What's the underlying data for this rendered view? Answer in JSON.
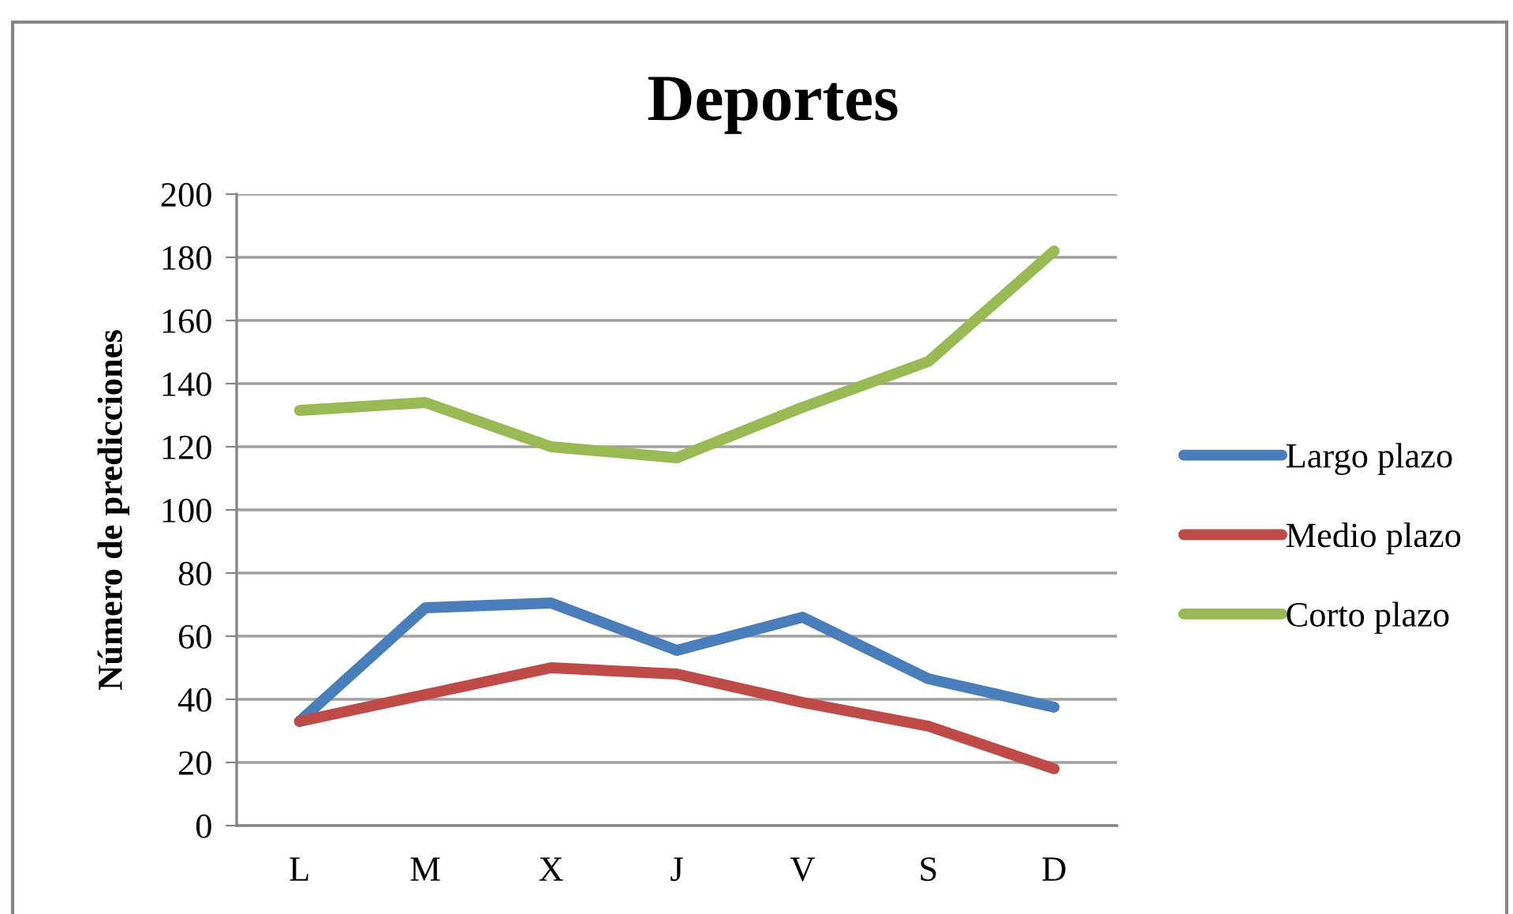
{
  "chart_data": {
    "type": "line",
    "title": "Deportes",
    "ylabel": "Número de predicciones",
    "categories": [
      "L",
      "M",
      "X",
      "J",
      "V",
      "S",
      "D"
    ],
    "series": [
      {
        "name": "Largo plazo",
        "color": "#4a7ebb",
        "values": [
          33,
          69,
          70.5,
          55.5,
          66,
          46.5,
          37.5
        ]
      },
      {
        "name": "Medio plazo",
        "color": "#be4b48",
        "values": [
          33,
          41.5,
          50,
          48,
          39,
          31.5,
          18
        ]
      },
      {
        "name": "Corto plazo",
        "color": "#98b954",
        "values": [
          131.5,
          134,
          120,
          116.5,
          132.5,
          147,
          182
        ]
      }
    ],
    "ylim": [
      0,
      200
    ],
    "yticks": [
      0,
      20,
      40,
      60,
      80,
      100,
      120,
      140,
      160,
      180,
      200
    ],
    "grid": "y",
    "legend": "right",
    "marker": "none",
    "line_style": "solid"
  }
}
